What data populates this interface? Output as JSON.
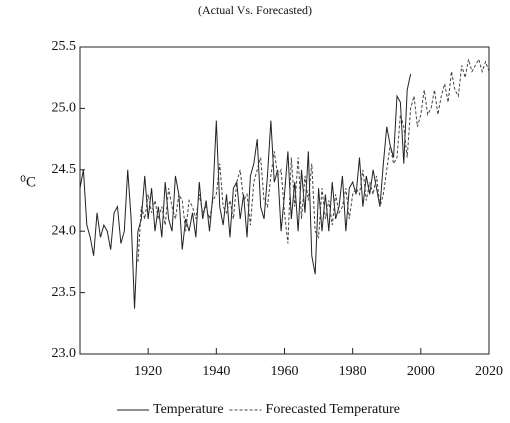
{
  "chart_data": {
    "type": "line",
    "subtitle": "(Actual Vs. Forecasted)",
    "y_label": "⁰C",
    "x": [
      1900,
      1901,
      1902,
      1903,
      1904,
      1905,
      1906,
      1907,
      1908,
      1909,
      1910,
      1911,
      1912,
      1913,
      1914,
      1915,
      1916,
      1917,
      1918,
      1919,
      1920,
      1921,
      1922,
      1923,
      1924,
      1925,
      1926,
      1927,
      1928,
      1929,
      1930,
      1931,
      1932,
      1933,
      1934,
      1935,
      1936,
      1937,
      1938,
      1939,
      1940,
      1941,
      1942,
      1943,
      1944,
      1945,
      1946,
      1947,
      1948,
      1949,
      1950,
      1951,
      1952,
      1953,
      1954,
      1955,
      1956,
      1957,
      1958,
      1959,
      1960,
      1961,
      1962,
      1963,
      1964,
      1965,
      1966,
      1967,
      1968,
      1969,
      1970,
      1971,
      1972,
      1973,
      1974,
      1975,
      1976,
      1977,
      1978,
      1979,
      1980,
      1981,
      1982,
      1983,
      1984,
      1985,
      1986,
      1987,
      1988,
      1989,
      1990,
      1991,
      1992,
      1993,
      1994,
      1995,
      1996,
      1997,
      1998,
      1999,
      2000,
      2001,
      2002,
      2003,
      2004,
      2005,
      2006,
      2007,
      2008,
      2009,
      2010,
      2011,
      2012,
      2013,
      2014,
      2015,
      2016,
      2017,
      2018,
      2019,
      2020
    ],
    "series": [
      {
        "name": "Temperature",
        "color": "#222222",
        "dash": "solid",
        "values": [
          24.35,
          24.5,
          24.05,
          23.95,
          23.8,
          24.15,
          23.95,
          24.05,
          24.0,
          23.85,
          24.15,
          24.2,
          23.9,
          24.0,
          24.5,
          24.1,
          23.37,
          24.0,
          24.1,
          24.45,
          24.1,
          24.35,
          24.0,
          24.2,
          23.95,
          24.4,
          24.1,
          24.0,
          24.45,
          24.3,
          23.85,
          24.1,
          24.0,
          24.15,
          23.95,
          24.4,
          24.1,
          24.25,
          24.0,
          24.3,
          24.9,
          24.2,
          24.05,
          24.3,
          23.95,
          24.35,
          24.4,
          24.1,
          24.3,
          23.95,
          24.45,
          24.55,
          24.75,
          24.2,
          24.1,
          24.45,
          24.9,
          24.4,
          24.5,
          24.0,
          24.3,
          24.65,
          24.1,
          24.4,
          24.0,
          24.5,
          24.15,
          24.65,
          23.8,
          23.65,
          24.35,
          24.0,
          24.3,
          24.0,
          24.4,
          24.1,
          24.2,
          24.45,
          24.0,
          24.35,
          24.4,
          24.3,
          24.6,
          24.2,
          24.45,
          24.3,
          24.5,
          24.35,
          24.2,
          24.55,
          24.85,
          24.7,
          24.6,
          25.1,
          25.05,
          24.55,
          25.15,
          25.28,
          null,
          null,
          null,
          null,
          null,
          null,
          null,
          null,
          null,
          null,
          null,
          null,
          null,
          null,
          null,
          null,
          null,
          null,
          null,
          null,
          null,
          null,
          null
        ]
      },
      {
        "name": "Forecasted Temperature",
        "color": "#444444",
        "dash": "dashed",
        "values": [
          null,
          null,
          null,
          null,
          null,
          null,
          null,
          null,
          null,
          null,
          null,
          null,
          null,
          null,
          null,
          null,
          null,
          23.75,
          24.2,
          24.1,
          24.3,
          24.15,
          24.25,
          24.1,
          24.2,
          24.05,
          24.35,
          24.2,
          24.1,
          24.3,
          24.25,
          24.0,
          24.25,
          24.2,
          24.1,
          24.3,
          24.15,
          24.2,
          24.1,
          24.25,
          24.3,
          24.55,
          24.2,
          24.15,
          24.25,
          24.1,
          24.4,
          24.5,
          24.25,
          24.3,
          24.05,
          24.4,
          24.5,
          24.6,
          24.25,
          24.2,
          24.45,
          24.65,
          24.45,
          24.5,
          24.15,
          23.9,
          24.6,
          24.2,
          24.6,
          24.1,
          24.45,
          24.25,
          24.55,
          24.0,
          23.95,
          24.35,
          24.1,
          24.25,
          24.05,
          24.3,
          24.15,
          24.2,
          24.35,
          24.1,
          24.3,
          24.35,
          24.3,
          24.5,
          24.25,
          24.4,
          24.3,
          24.45,
          24.2,
          24.3,
          24.5,
          24.7,
          24.55,
          24.6,
          24.95,
          24.85,
          24.6,
          25.0,
          25.1,
          24.85,
          24.95,
          25.15,
          24.95,
          25.0,
          25.15,
          24.95,
          25.1,
          25.2,
          25.05,
          25.3,
          25.15,
          25.1,
          25.35,
          25.25,
          25.4,
          25.3,
          25.35,
          25.4,
          25.3,
          25.38,
          25.3
        ]
      }
    ],
    "xlim": [
      1900,
      2020
    ],
    "xticks": [
      1920,
      1940,
      1960,
      1980,
      2000,
      2020
    ],
    "ylim": [
      23,
      25.5
    ],
    "yticks": [
      {
        "value": 23,
        "label": "23.0"
      },
      {
        "value": 23.5,
        "label": "23.5"
      },
      {
        "value": 24,
        "label": "24.0"
      },
      {
        "value": 24.5,
        "label": "24.5"
      },
      {
        "value": 25,
        "label": "25.0"
      },
      {
        "value": 25.5,
        "label": "25.5"
      }
    ],
    "grid": false,
    "legend": "bottom"
  }
}
